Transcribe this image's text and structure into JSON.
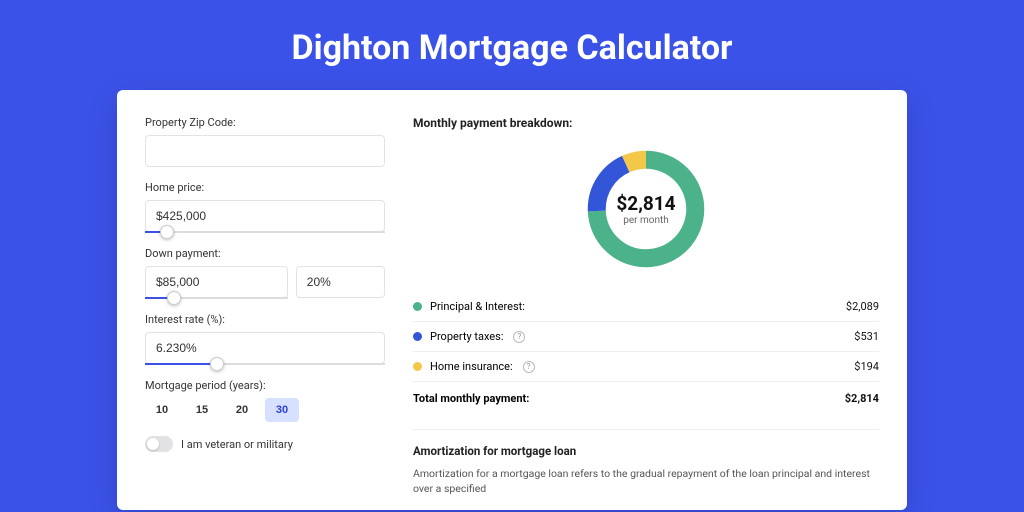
{
  "page": {
    "title": "Dighton Mortgage Calculator",
    "background_color": "#3b52e8",
    "card_background": "#ffffff"
  },
  "form": {
    "zip": {
      "label": "Property Zip Code:",
      "value": ""
    },
    "home_price": {
      "label": "Home price:",
      "value": "$425,000",
      "slider_pct": 9
    },
    "down_payment": {
      "label": "Down payment:",
      "value": "$85,000",
      "pct_value": "20%",
      "slider_pct": 20
    },
    "interest_rate": {
      "label": "Interest rate (%):",
      "value": "6.230%",
      "slider_pct": 30
    },
    "period": {
      "label": "Mortgage period (years):",
      "options": [
        "10",
        "15",
        "20",
        "30"
      ],
      "selected": "30"
    },
    "veteran": {
      "label": "I am veteran or military",
      "checked": false
    }
  },
  "breakdown": {
    "title": "Monthly payment breakdown:",
    "donut": {
      "center_value": "$2,814",
      "center_sub": "per month",
      "segments": [
        {
          "name": "Principal & Interest",
          "amount": 2089,
          "amount_label": "$2,089",
          "color": "#4bb28a",
          "fraction": 0.742
        },
        {
          "name": "Property taxes",
          "amount": 531,
          "amount_label": "$531",
          "color": "#3355d8",
          "fraction": 0.189
        },
        {
          "name": "Home insurance",
          "amount": 194,
          "amount_label": "$194",
          "color": "#f3c748",
          "fraction": 0.069
        }
      ],
      "stroke_width": 18
    },
    "rows": [
      {
        "label": "Principal & Interest:",
        "value": "$2,089",
        "color": "#4bb28a",
        "info": false
      },
      {
        "label": "Property taxes:",
        "value": "$531",
        "color": "#3355d8",
        "info": true
      },
      {
        "label": "Home insurance:",
        "value": "$194",
        "color": "#f3c748",
        "info": true
      }
    ],
    "total": {
      "label": "Total monthly payment:",
      "value": "$2,814"
    }
  },
  "amortization": {
    "title": "Amortization for mortgage loan",
    "body": "Amortization for a mortgage loan refers to the gradual repayment of the loan principal and interest over a specified"
  }
}
